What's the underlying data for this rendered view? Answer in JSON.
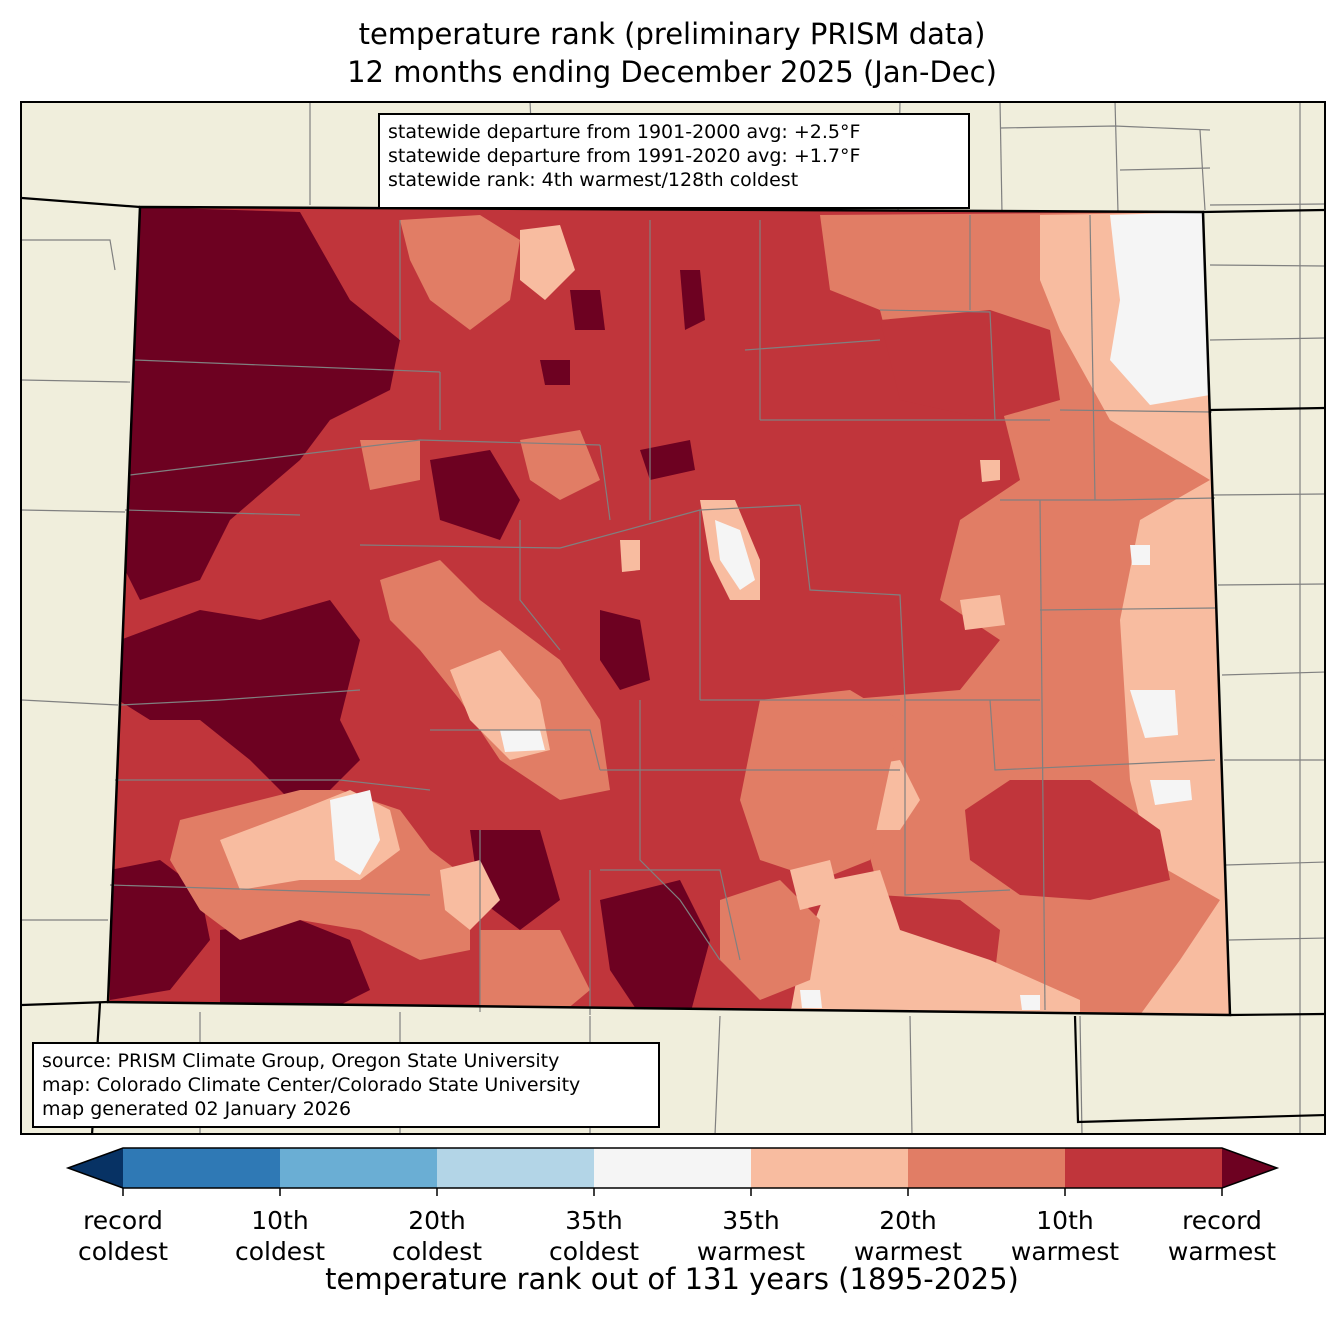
{
  "title": {
    "line1": "temperature rank (preliminary PRISM data)",
    "line2": "12 months ending December 2025 (Jan-Dec)"
  },
  "stats_box": {
    "line1": "statewide departure from 1901-2000 avg: +2.5°F",
    "line2": "statewide departure from 1991-2020 avg: +1.7°F",
    "line3": "statewide rank: 4th warmest/128th coldest"
  },
  "source_box": {
    "line1": "source: PRISM Climate Group, Oregon State University",
    "line2": "map: Colorado Climate Center/Colorado State University",
    "line3": "map generated 02 January 2026"
  },
  "legend": {
    "axis_label": "temperature rank out of 131 years (1895-2025)",
    "bins": [
      {
        "color": "#2f79b5"
      },
      {
        "color": "#6aaed4"
      },
      {
        "color": "#b3d5e7"
      },
      {
        "color": "#f5f5f5"
      },
      {
        "color": "#f8bca0"
      },
      {
        "color": "#e17d65"
      },
      {
        "color": "#c0353b"
      }
    ],
    "extend_low_color": "#073264",
    "extend_high_color": "#6d0121",
    "ticks": [
      {
        "line1": "record",
        "line2": "coldest"
      },
      {
        "line1": "10th",
        "line2": "coldest"
      },
      {
        "line1": "20th",
        "line2": "coldest"
      },
      {
        "line1": "35th",
        "line2": "coldest"
      },
      {
        "line1": "35th",
        "line2": "warmest"
      },
      {
        "line1": "20th",
        "line2": "warmest"
      },
      {
        "line1": "10th",
        "line2": "warmest"
      },
      {
        "line1": "record",
        "line2": "warmest"
      }
    ]
  },
  "map_colors": {
    "land_background": "#f0eedc",
    "record_warmest": "#6d0121",
    "tenth_warmest": "#c0353b",
    "twentieth_warmest": "#e17d65",
    "thirtyfifth_warmest": "#f8bca0",
    "neutral": "#f5f5f5",
    "county_lines": "#808080",
    "state_lines": "#000000"
  }
}
